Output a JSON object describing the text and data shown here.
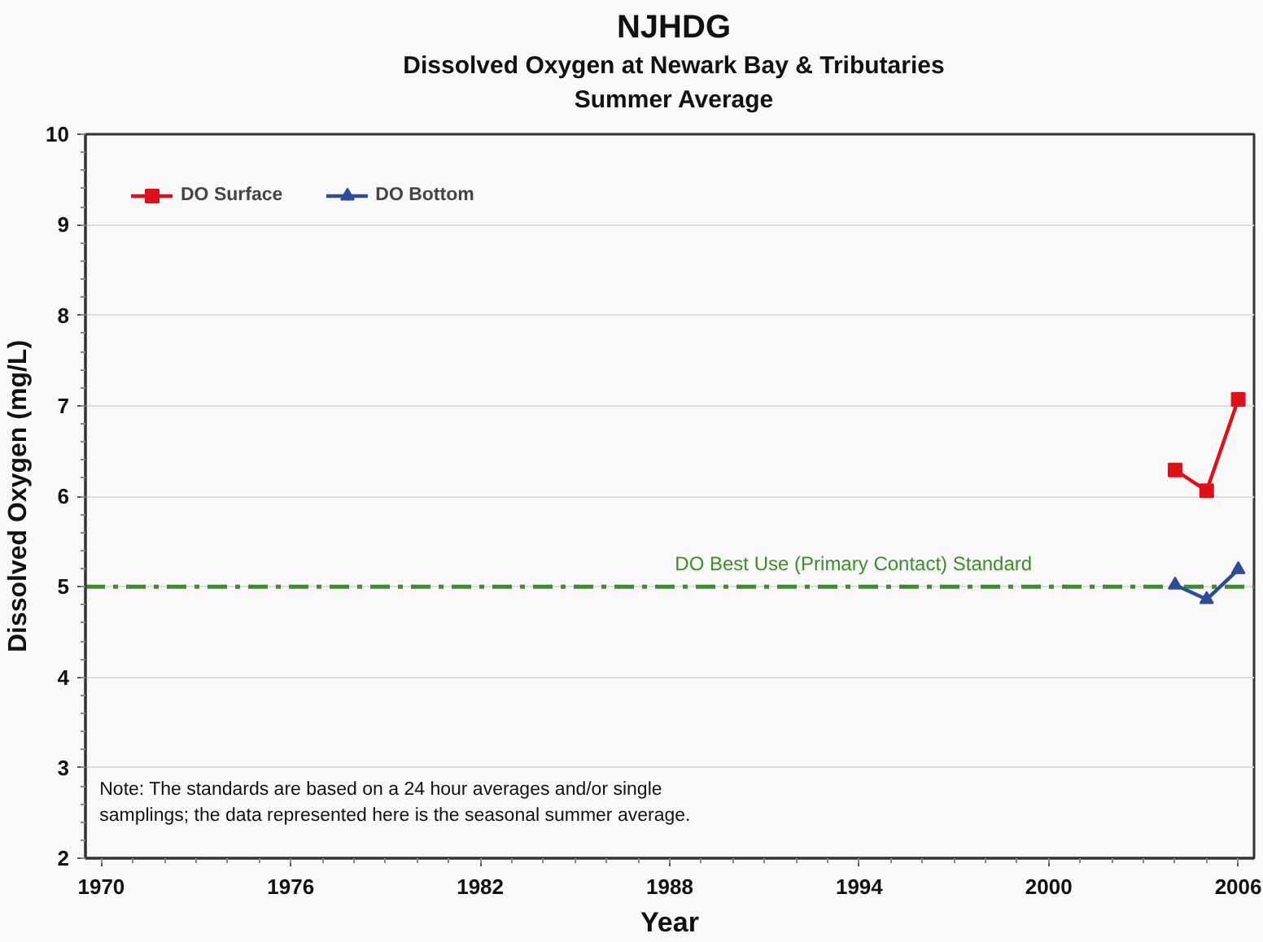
{
  "chart_data": {
    "type": "line",
    "title": "NJHDG",
    "subtitle": "Dissolved Oxygen at Newark Bay & Tributaries\nSummer Average",
    "xlabel": "Year",
    "ylabel": "Dissolved Oxygen (mg/L)",
    "annotations": [
      "Note: The standards are based on a 24 hour averages and/or single samplings; the data represented here is the seasonal summer average."
    ],
    "x": [
      2004,
      2005,
      2006
    ],
    "series": [
      {
        "name": "DO Surface",
        "color": "#e0101a",
        "marker": "square",
        "values": [
          6.29,
          6.06,
          7.07
        ]
      },
      {
        "name": "DO Bottom",
        "color": "#2e4b9b",
        "marker": "triangle",
        "values": [
          5.02,
          4.86,
          5.19
        ]
      }
    ],
    "xlim": [
      1969.5,
      2006.5
    ],
    "ylim": [
      2,
      10
    ],
    "xticks": [
      1970,
      1976,
      1982,
      1988,
      1994,
      2000,
      2006
    ],
    "yticks": [
      2,
      3,
      4,
      5,
      6,
      7,
      8,
      9,
      10
    ],
    "ref_lines": [
      {
        "axis": "y",
        "value": 5,
        "label": "DO Best Use (Primary Contact) Standard",
        "color": "#3a8f2b",
        "line_style": "dashdot"
      }
    ],
    "grid": "y",
    "legend": "top left"
  }
}
